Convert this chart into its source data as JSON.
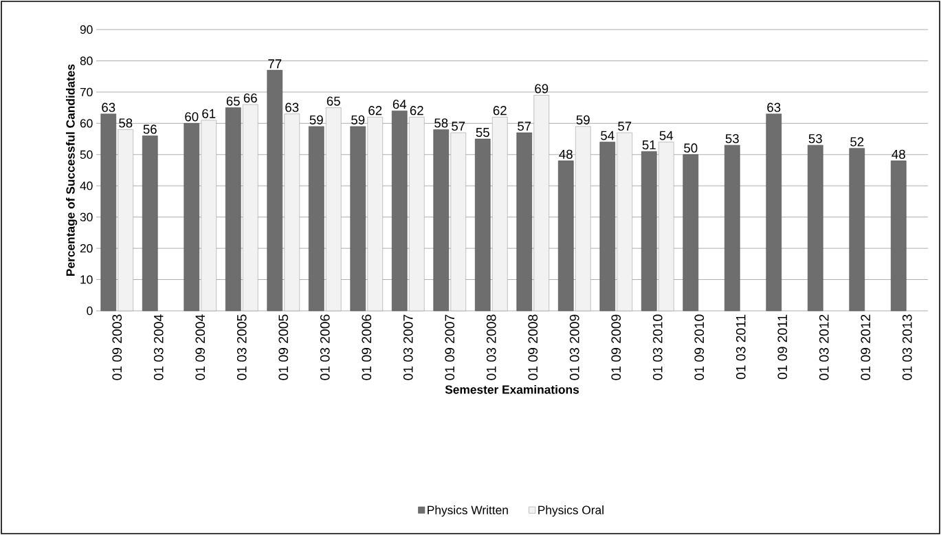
{
  "chart_data": {
    "type": "bar",
    "xlabel": "Semester Examinations",
    "ylabel": "Percentage of Successful Candidates",
    "categories": [
      "01 09 2003",
      "01 03 2004",
      "01 09 2004",
      "01 03 2005",
      "01 09 2005",
      "01 03 2006",
      "01 09 2006",
      "01 03 2007",
      "01 09 2007",
      "01 03 2008",
      "01 09 2008",
      "01 03 2009",
      "01 09 2009",
      "01 03 2010",
      "01 09 2010",
      "01 03 2011",
      "01 09 2011",
      "01 03 2012",
      "01 09 2012",
      "01 03 2013"
    ],
    "series": [
      {
        "name": "Physics Written",
        "color": "#6e6e6e",
        "values": [
          63,
          56,
          60,
          65,
          77,
          59,
          59,
          64,
          58,
          55,
          57,
          48,
          54,
          51,
          50,
          53,
          63,
          53,
          52,
          48
        ]
      },
      {
        "name": "Physics Oral",
        "color": "#f2f2f2",
        "values": [
          58,
          null,
          61,
          66,
          63,
          65,
          62,
          62,
          57,
          62,
          69,
          59,
          57,
          54,
          null,
          null,
          null,
          null,
          null,
          null
        ]
      }
    ],
    "ylim": [
      0,
      90
    ],
    "yticks": [
      0,
      10,
      20,
      30,
      40,
      50,
      60,
      70,
      80,
      90
    ],
    "grid": "y",
    "legend": "bottom",
    "data_labels": true
  }
}
